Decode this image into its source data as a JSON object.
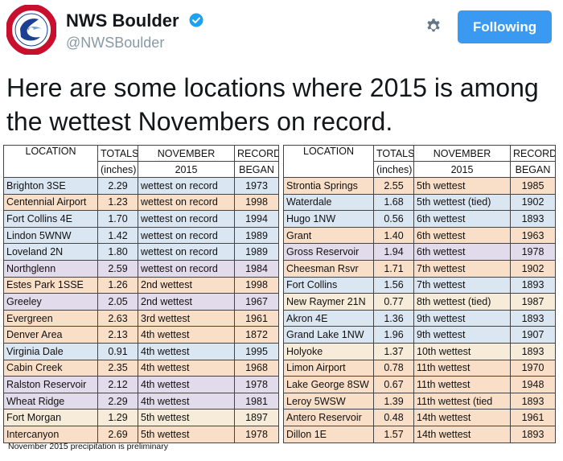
{
  "account": {
    "name": "NWS Boulder",
    "handle": "@NWSBoulder",
    "follow_label": "Following",
    "avatar_text": "NATIONAL WEATHER SERVICE"
  },
  "tweet": {
    "text": "Here are some locations where 2015 is among the wettest Novembers on record."
  },
  "table": {
    "headers": {
      "location": "LOCATION",
      "totals_1": "TOTALS",
      "totals_2": "(inches)",
      "november_1": "NOVEMBER",
      "november_2": "2015",
      "record_1": "RECORD",
      "record_2": "BEGAN"
    },
    "left_rows": [
      {
        "location": "Brighton 3SE",
        "total": "2.29",
        "rank": "wettest on record",
        "began": "1973",
        "color": "blue"
      },
      {
        "location": "Centennial Airport",
        "total": "1.23",
        "rank": "wettest on record",
        "began": "1998",
        "color": "orange"
      },
      {
        "location": "Fort Collins 4E",
        "total": "1.70",
        "rank": "wettest on record",
        "began": "1994",
        "color": "blue"
      },
      {
        "location": "Lindon 5WNW",
        "total": "1.42",
        "rank": "wettest on record",
        "began": "1989",
        "color": "blue"
      },
      {
        "location": "Loveland 2N",
        "total": "1.80",
        "rank": "wettest on record",
        "began": "1989",
        "color": "blue"
      },
      {
        "location": "Northglenn",
        "total": "2.59",
        "rank": "wettest on record",
        "began": "1984",
        "color": "purple"
      },
      {
        "location": "Estes Park 1SSE",
        "total": "1.26",
        "rank": "2nd wettest",
        "began": "1998",
        "color": "orange"
      },
      {
        "location": "Greeley",
        "total": "2.05",
        "rank": "2nd wettest",
        "began": "1967",
        "color": "purple"
      },
      {
        "location": "Evergreen",
        "total": "2.63",
        "rank": "3rd wettest",
        "began": "1961",
        "color": "orange"
      },
      {
        "location": "Denver Area",
        "total": "2.13",
        "rank": "4th wettest",
        "began": "1872",
        "color": "orange"
      },
      {
        "location": "Virginia Dale",
        "total": "0.91",
        "rank": "4th wettest",
        "began": "1995",
        "color": "blue"
      },
      {
        "location": "Cabin Creek",
        "total": "2.35",
        "rank": "4th wettest",
        "began": "1968",
        "color": "orange"
      },
      {
        "location": "Ralston Reservoir",
        "total": "2.12",
        "rank": "4th wettest",
        "began": "1978",
        "color": "purple"
      },
      {
        "location": "Wheat Ridge",
        "total": "2.29",
        "rank": "4th wettest",
        "began": "1981",
        "color": "purple"
      },
      {
        "location": "Fort Morgan",
        "total": "1.29",
        "rank": "5th wettest",
        "began": "1897",
        "color": "cream"
      },
      {
        "location": "Intercanyon",
        "total": "2.69",
        "rank": "5th wettest",
        "began": "1978",
        "color": "orange"
      }
    ],
    "right_rows": [
      {
        "location": "Strontia Springs",
        "total": "2.55",
        "rank": "5th wettest",
        "began": "1985",
        "color": "orange"
      },
      {
        "location": "Waterdale",
        "total": "1.68",
        "rank": "5th wettest (tied)",
        "began": "1902",
        "color": "blue"
      },
      {
        "location": "Hugo 1NW",
        "total": "0.56",
        "rank": "6th wettest",
        "began": "1893",
        "color": "blue"
      },
      {
        "location": "Grant",
        "total": "1.40",
        "rank": "6th wettest",
        "began": "1963",
        "color": "orange"
      },
      {
        "location": "Gross Reservoir",
        "total": "1.94",
        "rank": "6th wettest",
        "began": "1978",
        "color": "purple"
      },
      {
        "location": "Cheesman Rsvr",
        "total": "1.71",
        "rank": "7th wettest",
        "began": "1902",
        "color": "orange"
      },
      {
        "location": "Fort Collins",
        "total": "1.56",
        "rank": "7th wettest",
        "began": "1893",
        "color": "blue"
      },
      {
        "location": "New Raymer 21N",
        "total": "0.77",
        "rank": "8th wettest (tied)",
        "began": "1987",
        "color": "cream"
      },
      {
        "location": "Akron 4E",
        "total": "1.36",
        "rank": "9th wettest",
        "began": "1893",
        "color": "blue"
      },
      {
        "location": "Grand Lake 1NW",
        "total": "1.96",
        "rank": "9th wettest",
        "began": "1907",
        "color": "blue"
      },
      {
        "location": "Holyoke",
        "total": "1.37",
        "rank": "10th wettest",
        "began": "1893",
        "color": "cream"
      },
      {
        "location": "Limon Airport",
        "total": "0.78",
        "rank": "11th wettest",
        "began": "1970",
        "color": "orange"
      },
      {
        "location": "Lake George 8SW",
        "total": "0.67",
        "rank": "11th wettest",
        "began": "1948",
        "color": "orange"
      },
      {
        "location": "Leroy 5WSW",
        "total": "1.39",
        "rank": "11th wettest (tied",
        "began": "1893",
        "color": "orange"
      },
      {
        "location": "Antero Reservoir",
        "total": "0.48",
        "rank": "14th wettest",
        "began": "1961",
        "color": "orange"
      },
      {
        "location": "Dillon 1E",
        "total": "1.57",
        "rank": "14th wettest",
        "began": "1893",
        "color": "orange"
      }
    ],
    "footnote": "November 2015 precipitation is preliminary"
  },
  "colors": {
    "follow_button": "#3a99f0",
    "verified": "#1da1f2",
    "row_blue": "#dbe6f3",
    "row_orange": "#f9dfc8",
    "row_purple": "#e2dbeb",
    "row_cream": "#f6ecd9"
  }
}
